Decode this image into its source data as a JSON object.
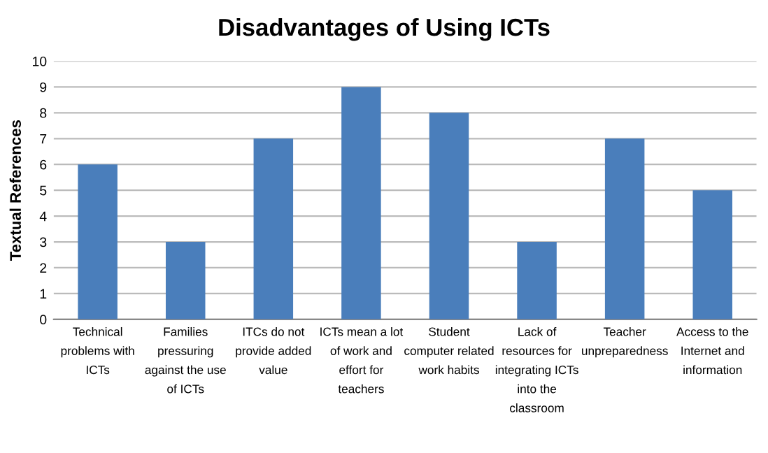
{
  "chart_data": {
    "type": "bar",
    "title": "Disadvantages of Using ICTs",
    "ylabel": "Textual References",
    "categories": [
      "Technical\nproblems with\nICTs",
      "Families\npressuring\nagainst the use\nof ICTs",
      "ITCs do not\nprovide added\nvalue",
      "ICTs mean a lot\nof work and\neffort for\nteachers",
      "Student\ncomputer related\nwork habits",
      "Lack of\nresources for\nintegrating ICTs\ninto the\nclassroom",
      "Teacher\nunpreparedness",
      "Access to the\nInternet and\ninformation"
    ],
    "values": [
      6,
      3,
      7,
      9,
      8,
      3,
      7,
      5
    ],
    "color": "#4a7ebb",
    "ylim": [
      0,
      10
    ],
    "yticks": [
      0,
      1,
      2,
      3,
      4,
      5,
      6,
      7,
      8,
      9,
      10
    ],
    "grid": "y"
  }
}
